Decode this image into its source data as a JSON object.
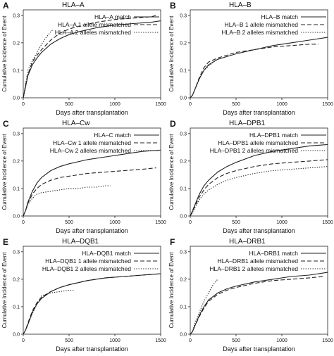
{
  "chart_data": [
    {
      "type": "line",
      "panel_letter": "A",
      "title": "HLA–A",
      "xlabel": "Days after transplantation",
      "ylabel": "Cumulative Incidence of Event",
      "xlim": [
        0,
        1500
      ],
      "ylim": [
        0,
        0.32
      ],
      "xticks": [
        0,
        500,
        1000,
        1500
      ],
      "xtick_labels": [
        "0",
        "500",
        "1000",
        "1500"
      ],
      "yticks": [
        0,
        0.1,
        0.2,
        0.3
      ],
      "ytick_labels": [
        "0.0",
        "0.1",
        "0.2",
        "0.3"
      ],
      "legend_position": "top-right",
      "series": [
        {
          "name": "HLA–A match",
          "style": "solid",
          "x": [
            0,
            25,
            50,
            100,
            150,
            200,
            300,
            400,
            500,
            600,
            800,
            1000,
            1200,
            1400,
            1500
          ],
          "y": [
            0,
            0.04,
            0.08,
            0.12,
            0.145,
            0.165,
            0.195,
            0.215,
            0.23,
            0.24,
            0.255,
            0.265,
            0.27,
            0.275,
            0.28
          ]
        },
        {
          "name": "HLA–A 1 allele mismatched",
          "style": "dashed",
          "x": [
            0,
            25,
            50,
            100,
            150,
            200,
            300,
            400,
            500,
            600,
            800,
            1000,
            1200,
            1400,
            1450
          ],
          "y": [
            0,
            0.045,
            0.085,
            0.13,
            0.155,
            0.175,
            0.21,
            0.235,
            0.25,
            0.26,
            0.275,
            0.285,
            0.29,
            0.295,
            0.3
          ]
        },
        {
          "name": "HLA–A 2 alleles mismatched",
          "style": "dotted",
          "x": [
            0,
            25,
            50,
            100,
            150,
            200,
            250,
            300,
            330
          ],
          "y": [
            0,
            0.05,
            0.1,
            0.135,
            0.165,
            0.195,
            0.22,
            0.24,
            0.25
          ]
        }
      ]
    },
    {
      "type": "line",
      "panel_letter": "B",
      "title": "HLA–B",
      "xlabel": "Days after transplantation",
      "ylabel": "Cumulative Incidence of Event",
      "xlim": [
        0,
        1500
      ],
      "ylim": [
        0,
        0.32
      ],
      "xticks": [
        0,
        500,
        1000,
        1500
      ],
      "xtick_labels": [
        "0",
        "500",
        "1000",
        "1500"
      ],
      "yticks": [
        0,
        0.1,
        0.2,
        0.3
      ],
      "ytick_labels": [
        "0.0",
        "0.1",
        "0.2",
        "0.3"
      ],
      "legend_position": "top-right",
      "series": [
        {
          "name": "HLA–B match",
          "style": "solid",
          "x": [
            0,
            25,
            50,
            100,
            150,
            200,
            300,
            400,
            500,
            700,
            900,
            1100,
            1300,
            1500
          ],
          "y": [
            0,
            0.01,
            0.03,
            0.07,
            0.1,
            0.12,
            0.14,
            0.15,
            0.16,
            0.175,
            0.19,
            0.2,
            0.21,
            0.22
          ]
        },
        {
          "name": "HLA–B 1 allele mismatched",
          "style": "dashed",
          "x": [
            0,
            25,
            50,
            100,
            150,
            200,
            300,
            400,
            500,
            700,
            900,
            1100,
            1300,
            1400
          ],
          "y": [
            0,
            0.01,
            0.03,
            0.075,
            0.11,
            0.13,
            0.145,
            0.155,
            0.165,
            0.175,
            0.185,
            0.19,
            0.195,
            0.195
          ]
        },
        {
          "name": "HLA–B 2 alleles mismatched",
          "style": "dotted",
          "x": [
            0,
            25,
            50,
            100,
            150,
            200,
            250,
            300
          ],
          "y": [
            0,
            0.01,
            0.03,
            0.07,
            0.1,
            0.115,
            0.13,
            0.14
          ]
        }
      ]
    },
    {
      "type": "line",
      "panel_letter": "C",
      "title": "HLA–Cw",
      "xlabel": "Days after transplantation",
      "ylabel": "Cumulative Incidence of Event",
      "xlim": [
        0,
        1500
      ],
      "ylim": [
        0,
        0.32
      ],
      "xticks": [
        0,
        500,
        1000,
        1500
      ],
      "xtick_labels": [
        "0",
        "500",
        "1000",
        "1500"
      ],
      "yticks": [
        0,
        0.1,
        0.2,
        0.3
      ],
      "ytick_labels": [
        "0.0",
        "0.1",
        "0.2",
        "0.3"
      ],
      "legend_position": "top-right",
      "series": [
        {
          "name": "HLA–C match",
          "style": "solid",
          "x": [
            0,
            25,
            50,
            100,
            150,
            200,
            300,
            400,
            500,
            700,
            900,
            1100,
            1300,
            1500
          ],
          "y": [
            0,
            0.02,
            0.05,
            0.09,
            0.12,
            0.14,
            0.165,
            0.18,
            0.19,
            0.205,
            0.215,
            0.225,
            0.235,
            0.24
          ]
        },
        {
          "name": "HLA–Cw 1 allele mismatched",
          "style": "dashed",
          "x": [
            0,
            25,
            50,
            100,
            150,
            200,
            300,
            400,
            500,
            700,
            900,
            1100,
            1300,
            1450
          ],
          "y": [
            0,
            0.02,
            0.045,
            0.08,
            0.1,
            0.115,
            0.13,
            0.14,
            0.145,
            0.155,
            0.16,
            0.165,
            0.17,
            0.175
          ]
        },
        {
          "name": "HLA–Cw 2 alleles mismatched",
          "style": "dotted",
          "x": [
            0,
            25,
            50,
            100,
            150,
            200,
            300,
            400,
            500,
            600,
            700,
            800,
            900,
            950
          ],
          "y": [
            0,
            0.02,
            0.04,
            0.065,
            0.08,
            0.085,
            0.09,
            0.095,
            0.1,
            0.1,
            0.105,
            0.105,
            0.11,
            0.11
          ]
        }
      ]
    },
    {
      "type": "line",
      "panel_letter": "D",
      "title": "HLA–DPB1",
      "xlabel": "Days after transplantation",
      "ylabel": "Cumulative Incidence of Event",
      "xlim": [
        0,
        1500
      ],
      "ylim": [
        0,
        0.32
      ],
      "xticks": [
        0,
        500,
        1000,
        1500
      ],
      "xtick_labels": [
        "0",
        "500",
        "1000",
        "1500"
      ],
      "yticks": [
        0,
        0.1,
        0.2,
        0.3
      ],
      "ytick_labels": [
        "0.0",
        "0.1",
        "0.2",
        "0.3"
      ],
      "legend_position": "top-right",
      "series": [
        {
          "name": "HLA–DPB1 match",
          "style": "solid",
          "x": [
            0,
            25,
            50,
            100,
            150,
            200,
            300,
            400,
            500,
            700,
            900,
            1100,
            1300,
            1500
          ],
          "y": [
            0,
            0.02,
            0.04,
            0.08,
            0.11,
            0.13,
            0.16,
            0.18,
            0.195,
            0.22,
            0.235,
            0.245,
            0.255,
            0.26
          ]
        },
        {
          "name": "HLA–DPB1 allele mismatched",
          "style": "dashed",
          "x": [
            0,
            25,
            50,
            100,
            150,
            200,
            300,
            400,
            500,
            700,
            900,
            1100,
            1300,
            1500
          ],
          "y": [
            0,
            0.015,
            0.035,
            0.07,
            0.095,
            0.115,
            0.14,
            0.155,
            0.165,
            0.18,
            0.19,
            0.195,
            0.2,
            0.205
          ]
        },
        {
          "name": "HLA–DPB1 2 alleles mismatched",
          "style": "dotted",
          "x": [
            0,
            25,
            50,
            100,
            150,
            200,
            300,
            400,
            500,
            700,
            900,
            1100,
            1300,
            1500
          ],
          "y": [
            0,
            0.012,
            0.03,
            0.06,
            0.08,
            0.095,
            0.115,
            0.13,
            0.14,
            0.155,
            0.165,
            0.17,
            0.175,
            0.18
          ]
        }
      ]
    },
    {
      "type": "line",
      "panel_letter": "E",
      "title": "HLA–DQB1",
      "xlabel": "Days after transplantation",
      "ylabel": "Cumulative Incidence of Event",
      "xlim": [
        0,
        1500
      ],
      "ylim": [
        0,
        0.32
      ],
      "xticks": [
        0,
        500,
        1000,
        1500
      ],
      "xtick_labels": [
        "0",
        "500",
        "1000",
        "1500"
      ],
      "yticks": [
        0,
        0.1,
        0.2,
        0.3
      ],
      "ytick_labels": [
        "0.0",
        "0.1",
        "0.2",
        "0.3"
      ],
      "legend_position": "top-right",
      "series": [
        {
          "name": "HLA–DQB1 match",
          "style": "solid",
          "x": [
            0,
            25,
            50,
            100,
            150,
            200,
            300,
            400,
            500,
            700,
            900,
            1100,
            1300,
            1500
          ],
          "y": [
            0,
            0.015,
            0.035,
            0.08,
            0.11,
            0.13,
            0.155,
            0.17,
            0.18,
            0.195,
            0.205,
            0.21,
            0.215,
            0.22
          ]
        },
        {
          "name": "HLA–DQB1 1 allele mismatched",
          "style": "dashed",
          "x": [
            0,
            25,
            50,
            100,
            150,
            200,
            300,
            400,
            500,
            700,
            900,
            1100,
            1300,
            1500
          ],
          "y": [
            0,
            0.015,
            0.04,
            0.085,
            0.115,
            0.135,
            0.155,
            0.17,
            0.18,
            0.195,
            0.205,
            0.21,
            0.215,
            0.22
          ]
        },
        {
          "name": "HLA–DQB1 2 alleles mismatched",
          "style": "dotted",
          "x": [
            0,
            25,
            50,
            100,
            150,
            200,
            300,
            400,
            500,
            550
          ],
          "y": [
            0,
            0.015,
            0.035,
            0.075,
            0.11,
            0.14,
            0.15,
            0.155,
            0.16,
            0.16
          ]
        }
      ]
    },
    {
      "type": "line",
      "panel_letter": "F",
      "title": "HLA–DRB1",
      "xlabel": "Days after transplantation",
      "ylabel": "Cumulative Incidence of Event",
      "xlim": [
        0,
        1500
      ],
      "ylim": [
        0,
        0.32
      ],
      "xticks": [
        0,
        500,
        1000,
        1500
      ],
      "xtick_labels": [
        "0",
        "500",
        "1000",
        "1500"
      ],
      "yticks": [
        0,
        0.1,
        0.2,
        0.3
      ],
      "ytick_labels": [
        "0.0",
        "0.1",
        "0.2",
        "0.3"
      ],
      "legend_position": "top-right",
      "series": [
        {
          "name": "HLA–DRB1 match",
          "style": "solid",
          "x": [
            0,
            25,
            50,
            100,
            150,
            200,
            300,
            400,
            500,
            700,
            900,
            1100,
            1300,
            1500
          ],
          "y": [
            0,
            0.01,
            0.03,
            0.07,
            0.1,
            0.125,
            0.15,
            0.165,
            0.175,
            0.19,
            0.2,
            0.21,
            0.215,
            0.225
          ]
        },
        {
          "name": "HLA–DRB1 allele mismatched",
          "style": "dashed",
          "x": [
            0,
            25,
            50,
            100,
            150,
            200,
            300,
            400,
            500,
            700,
            900,
            1100,
            1300,
            1450
          ],
          "y": [
            0,
            0.01,
            0.03,
            0.065,
            0.095,
            0.12,
            0.145,
            0.16,
            0.17,
            0.185,
            0.195,
            0.2,
            0.205,
            0.21
          ]
        },
        {
          "name": "HLA–DRB1 2 alleles mismatched",
          "style": "dotted",
          "x": [
            0,
            25,
            50,
            100,
            150,
            200,
            250,
            300
          ],
          "y": [
            0,
            0.01,
            0.04,
            0.08,
            0.12,
            0.15,
            0.18,
            0.2
          ]
        }
      ]
    }
  ]
}
